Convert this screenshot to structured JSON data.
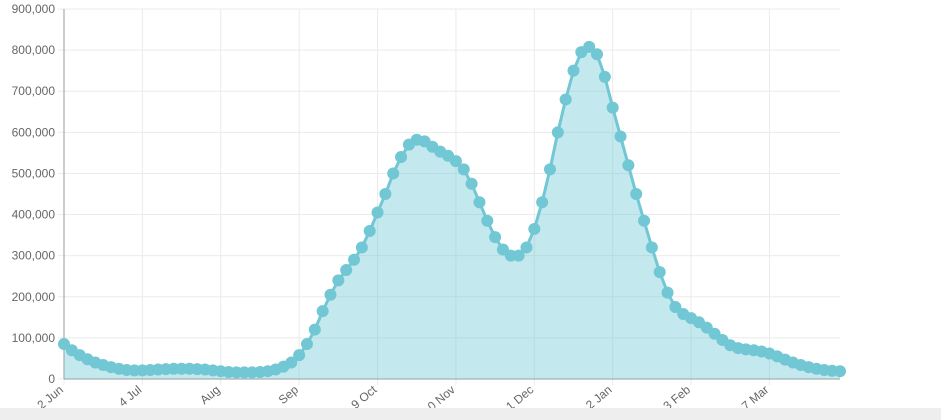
{
  "chart_data": {
    "type": "area",
    "categories": [
      "2 Jun",
      null,
      null,
      null,
      null,
      null,
      null,
      null,
      null,
      null,
      "4 Jul",
      null,
      null,
      null,
      null,
      null,
      null,
      null,
      null,
      null,
      "Aug",
      null,
      null,
      null,
      null,
      null,
      null,
      null,
      null,
      null,
      "Sep",
      null,
      null,
      null,
      null,
      null,
      null,
      null,
      null,
      null,
      "9 Oct",
      null,
      null,
      null,
      null,
      null,
      null,
      null,
      null,
      null,
      "0 Nov",
      null,
      null,
      null,
      null,
      null,
      null,
      null,
      null,
      null,
      "1 Dec",
      null,
      null,
      null,
      null,
      null,
      null,
      null,
      null,
      null,
      "2 Jan",
      null,
      null,
      null,
      null,
      null,
      null,
      null,
      null,
      null,
      "3 Feb",
      null,
      null,
      null,
      null,
      null,
      null,
      null,
      null,
      null,
      "7 Mar",
      null,
      null,
      null,
      null,
      null,
      null,
      null,
      null,
      null
    ],
    "values": [
      85000,
      70000,
      58000,
      48000,
      40000,
      34000,
      29000,
      25000,
      22000,
      21000,
      21000,
      22000,
      23000,
      24000,
      25000,
      25000,
      25000,
      24000,
      23000,
      21000,
      19000,
      17000,
      16000,
      16000,
      16000,
      17000,
      19000,
      23000,
      30000,
      40000,
      58000,
      85000,
      120000,
      165000,
      205000,
      240000,
      265000,
      290000,
      320000,
      360000,
      405000,
      450000,
      500000,
      540000,
      570000,
      582000,
      578000,
      565000,
      553000,
      543000,
      530000,
      510000,
      475000,
      430000,
      385000,
      345000,
      315000,
      300000,
      300000,
      320000,
      365000,
      430000,
      510000,
      600000,
      680000,
      750000,
      795000,
      808000,
      790000,
      735000,
      660000,
      590000,
      520000,
      450000,
      385000,
      320000,
      260000,
      210000,
      175000,
      158000,
      148000,
      138000,
      125000,
      110000,
      95000,
      82000,
      75000,
      72000,
      70000,
      67000,
      62000,
      55000,
      47000,
      40000,
      34000,
      29000,
      25000,
      22000,
      20000,
      19000
    ],
    "color": "#71c7d3",
    "ylim": [
      0,
      900000
    ],
    "yticks": [
      0,
      {
        "value": 100000,
        "label": "100,000"
      },
      {
        "value": 200000,
        "label": "200,000"
      },
      {
        "value": 300000,
        "label": "300,000"
      },
      {
        "value": 400000,
        "label": "400,000"
      },
      {
        "value": 500000,
        "label": "500,000"
      },
      {
        "value": 600000,
        "label": "600,000"
      },
      {
        "value": 700000,
        "label": "700,000"
      },
      {
        "value": 800000,
        "label": "800,000"
      },
      {
        "value": 900000,
        "label": "900,000"
      }
    ],
    "grid": true
  }
}
